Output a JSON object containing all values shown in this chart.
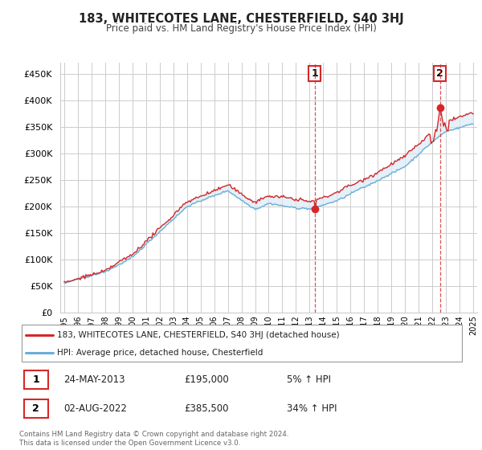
{
  "title": "183, WHITECOTES LANE, CHESTERFIELD, S40 3HJ",
  "subtitle": "Price paid vs. HM Land Registry's House Price Index (HPI)",
  "legend_line1": "183, WHITECOTES LANE, CHESTERFIELD, S40 3HJ (detached house)",
  "legend_line2": "HPI: Average price, detached house, Chesterfield",
  "annotation1_date": "24-MAY-2013",
  "annotation1_price": "£195,000",
  "annotation1_hpi": "5% ↑ HPI",
  "annotation1_year": 2013.38,
  "annotation1_value": 195000,
  "annotation2_date": "02-AUG-2022",
  "annotation2_price": "£385,500",
  "annotation2_hpi": "34% ↑ HPI",
  "annotation2_year": 2022.58,
  "annotation2_value": 385500,
  "footer": "Contains HM Land Registry data © Crown copyright and database right 2024.\nThis data is licensed under the Open Government Licence v3.0.",
  "hpi_color": "#6baed6",
  "hpi_fill_color": "#daeaf6",
  "price_color": "#d62728",
  "background_color": "#ffffff",
  "grid_color": "#cccccc",
  "ylim": [
    0,
    470000
  ],
  "yticks": [
    0,
    50000,
    100000,
    150000,
    200000,
    250000,
    300000,
    350000,
    400000,
    450000
  ],
  "start_year": 1995,
  "end_year": 2025
}
